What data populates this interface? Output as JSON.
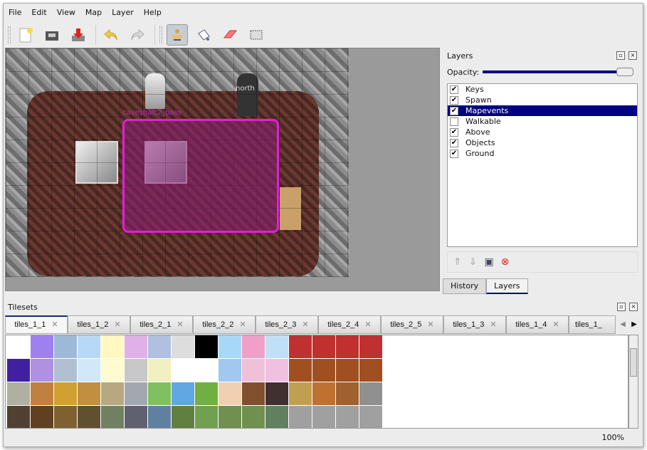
{
  "menu": [
    "File",
    "Edit",
    "View",
    "Map",
    "Layer",
    "Help"
  ],
  "toolbar": {
    "icons": [
      "new-file-icon",
      "open-folder-icon",
      "save-icon",
      "undo-icon",
      "redo-icon",
      "stamp-brush-icon",
      "bucket-fill-icon",
      "eraser-icon",
      "rect-select-icon"
    ],
    "active": "stamp-brush-icon"
  },
  "map": {
    "object_label": "caveshaft2_boss",
    "north_label": "north",
    "selection_color": "#e020d8"
  },
  "layers_panel": {
    "title": "Layers",
    "opacity_label": "Opacity:",
    "opacity": 1.0,
    "layers": [
      {
        "name": "Keys",
        "visible": true
      },
      {
        "name": "Spawn",
        "visible": true
      },
      {
        "name": "Mapevents",
        "visible": true,
        "selected": true
      },
      {
        "name": "Walkable",
        "visible": false
      },
      {
        "name": "Above",
        "visible": true
      },
      {
        "name": "Objects",
        "visible": true
      },
      {
        "name": "Ground",
        "visible": true
      }
    ],
    "buttons": [
      "raise-layer-icon",
      "lower-layer-icon",
      "duplicate-layer-icon",
      "delete-layer-icon"
    ],
    "tabs": [
      {
        "label": "History"
      },
      {
        "label": "Layers",
        "active": true
      }
    ]
  },
  "tilesets": {
    "title": "Tilesets",
    "tabs": [
      "tiles_1_1",
      "tiles_1_2",
      "tiles_2_1",
      "tiles_2_2",
      "tiles_2_3",
      "tiles_2_4",
      "tiles_2_5",
      "tiles_1_3",
      "tiles_1_4",
      "tiles_1_"
    ],
    "active": "tiles_1_1"
  },
  "status": {
    "zoom": "100%"
  },
  "colors": {
    "accent": "#000080"
  }
}
